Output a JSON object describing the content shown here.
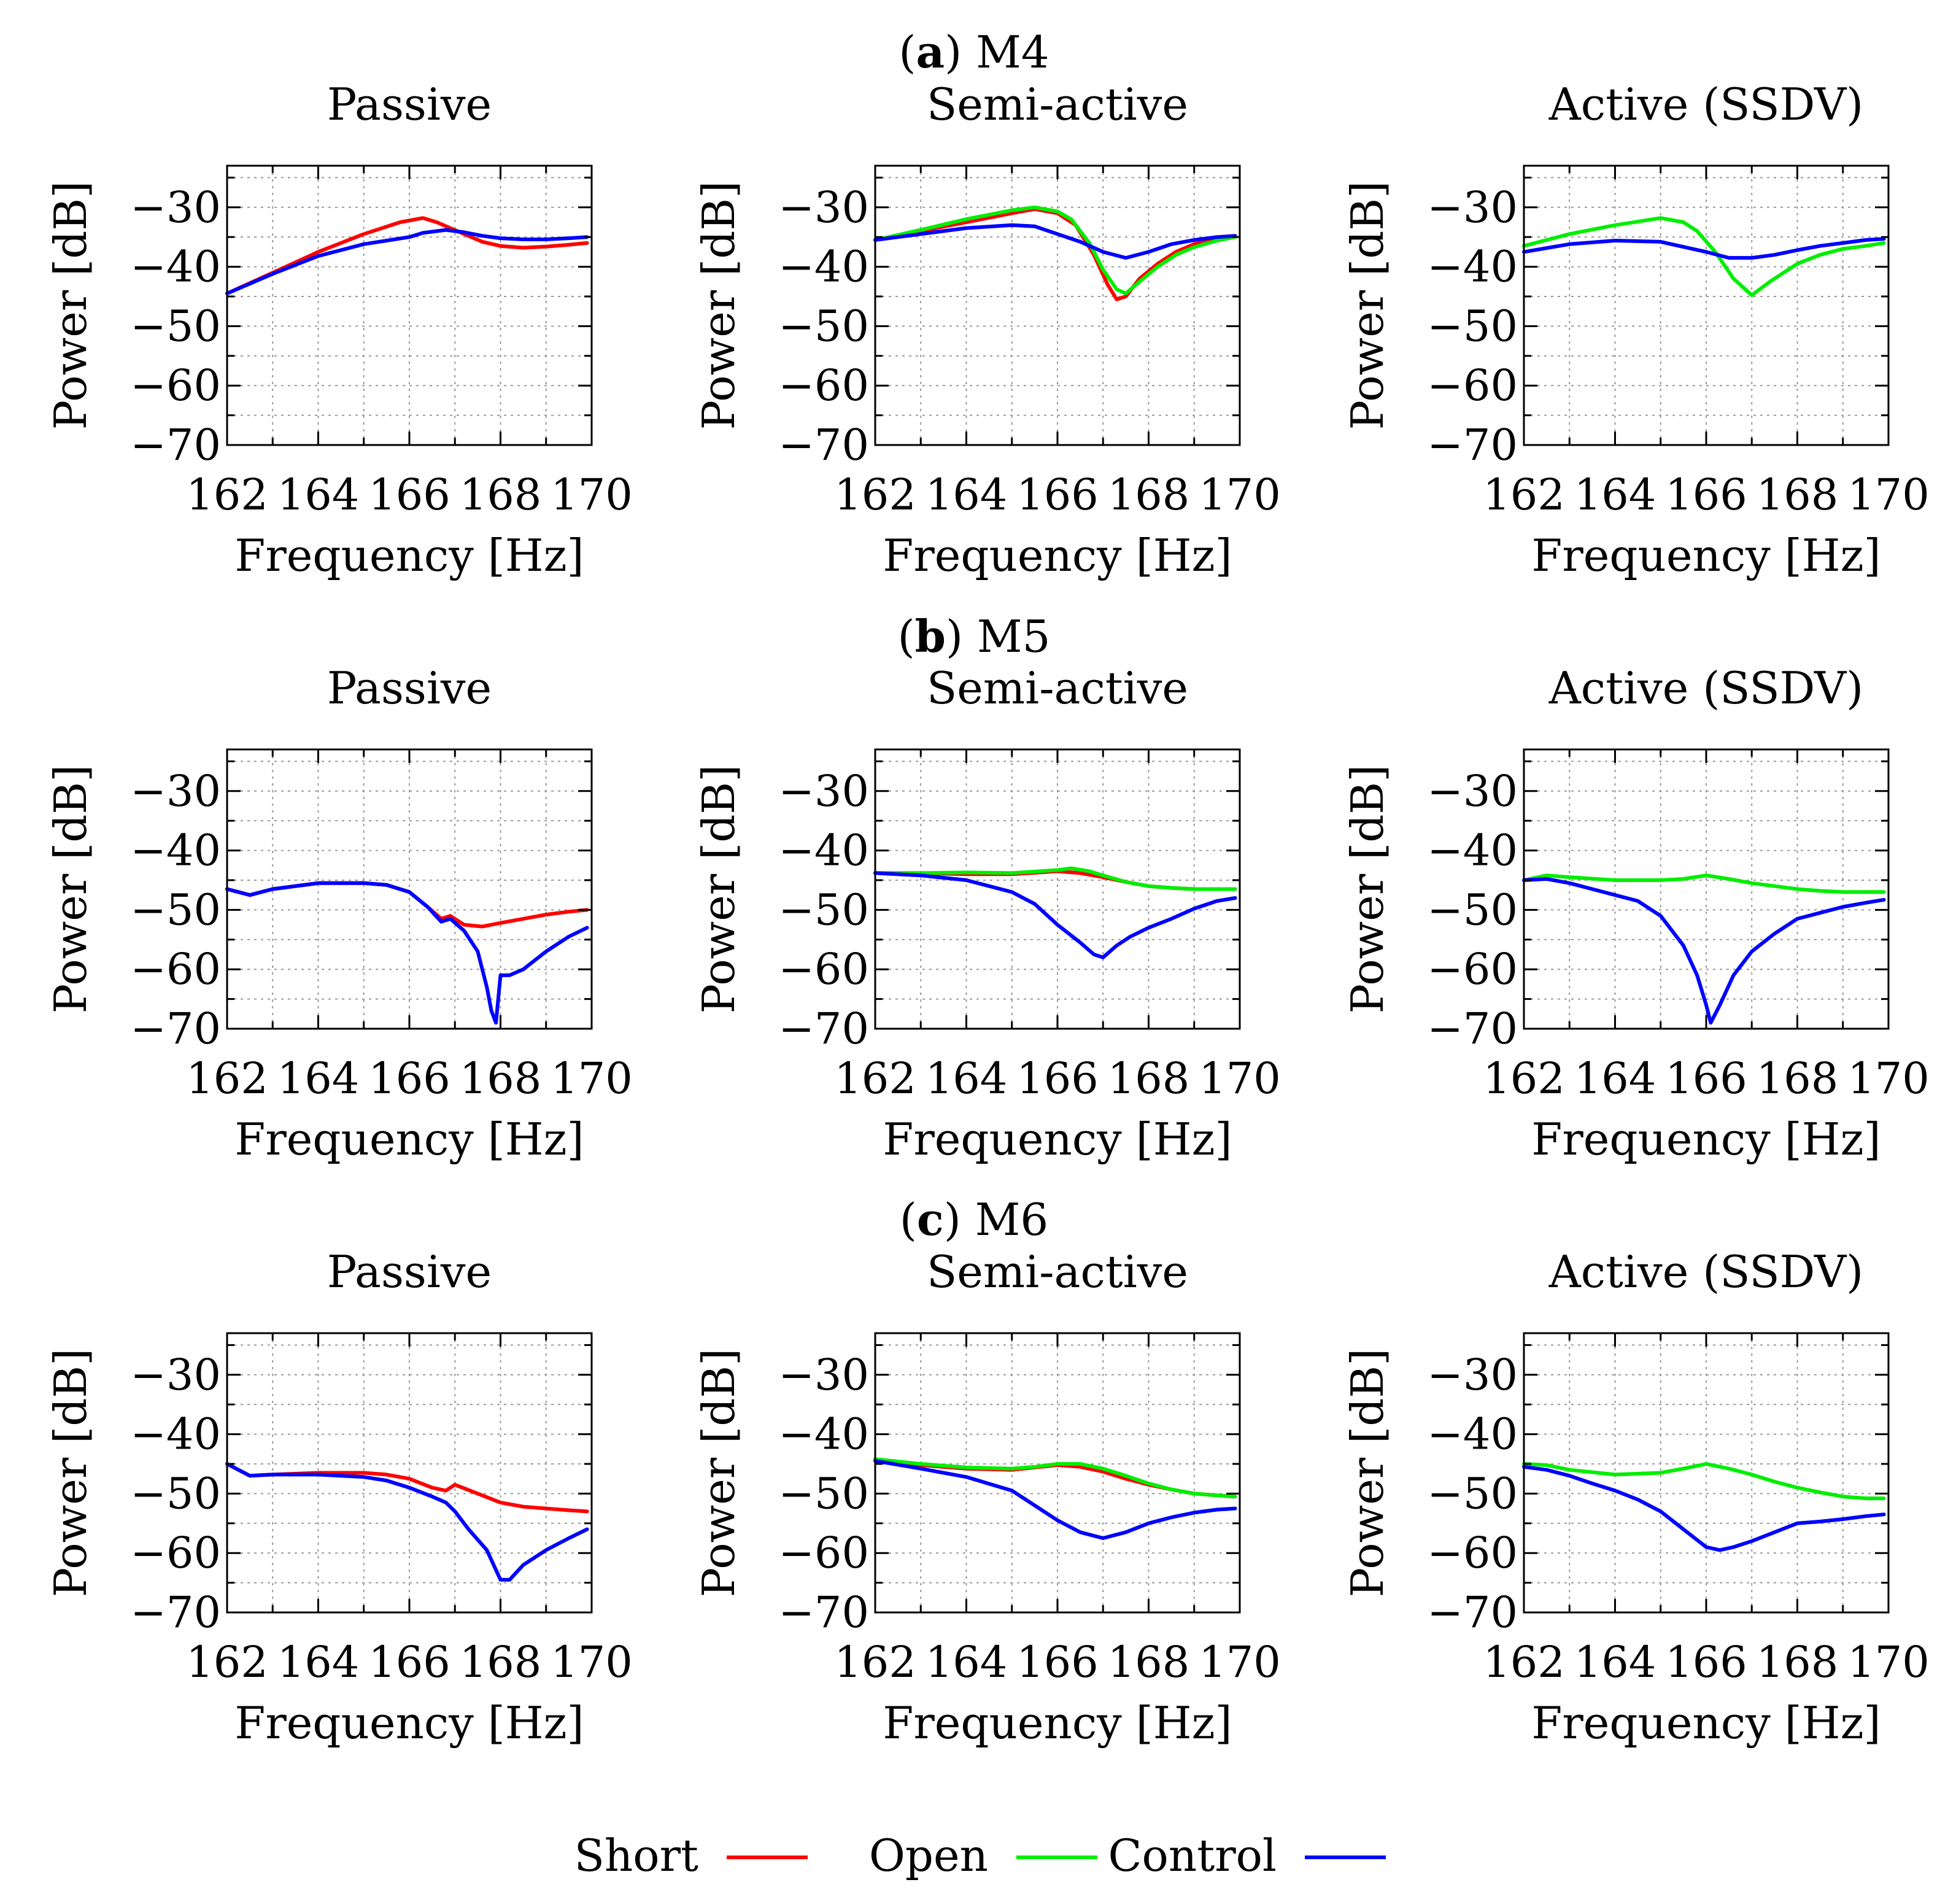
{
  "figure": {
    "rows": [
      {
        "label_letter": "a",
        "label_text": "M4"
      },
      {
        "label_letter": "b",
        "label_text": "M5"
      },
      {
        "label_letter": "c",
        "label_text": "M6"
      }
    ],
    "legend": [
      {
        "name": "Short",
        "color": "#ff0000"
      },
      {
        "name": "Open",
        "color": "#00ee00"
      },
      {
        "name": "Control",
        "color": "#0000ff"
      }
    ]
  },
  "chart_data": [
    {
      "type": "line",
      "title": "Passive",
      "xlabel": "Frequency [Hz]",
      "ylabel": "Power [dB]",
      "xlim": [
        162,
        170
      ],
      "ylim": [
        -70,
        -23
      ],
      "xticks": [
        "162",
        "164",
        "166",
        "168",
        "170"
      ],
      "yticks": [
        "−30",
        "−40",
        "−50",
        "−60",
        "−70"
      ],
      "series": [
        {
          "name": "Short",
          "color": "#ff0000",
          "x": [
            162,
            163,
            164,
            165,
            165.8,
            166.3,
            166.6,
            166.9,
            167.2,
            167.6,
            168,
            168.5,
            169,
            169.5,
            169.9
          ],
          "y": [
            -44.5,
            -41,
            -37.5,
            -34.5,
            -32.5,
            -31.8,
            -32.5,
            -33.5,
            -34.5,
            -35.8,
            -36.5,
            -36.8,
            -36.6,
            -36.3,
            -36.0
          ]
        },
        {
          "name": "Control",
          "color": "#0000ff",
          "x": [
            162,
            163,
            164,
            165,
            166,
            166.3,
            166.8,
            167.2,
            167.6,
            168,
            168.5,
            169,
            169.5,
            169.9
          ],
          "y": [
            -44.5,
            -41.2,
            -38.2,
            -36.2,
            -35.0,
            -34.3,
            -33.8,
            -34.2,
            -34.8,
            -35.2,
            -35.4,
            -35.4,
            -35.2,
            -35.0
          ]
        }
      ]
    },
    {
      "type": "line",
      "title": "Semi-active",
      "xlabel": "Frequency [Hz]",
      "ylabel": "Power [dB]",
      "xlim": [
        162,
        170
      ],
      "ylim": [
        -70,
        -23
      ],
      "xticks": [
        "162",
        "164",
        "166",
        "168",
        "170"
      ],
      "yticks": [
        "−30",
        "−40",
        "−50",
        "−60",
        "−70"
      ],
      "series": [
        {
          "name": "Short",
          "color": "#ff0000",
          "x": [
            162,
            163,
            164,
            165,
            165.5,
            166,
            166.4,
            166.8,
            167.1,
            167.3,
            167.5,
            167.8,
            168.2,
            168.6,
            169,
            169.5,
            169.9
          ],
          "y": [
            -35.5,
            -34,
            -32.5,
            -31,
            -30.3,
            -31,
            -33,
            -38,
            -43,
            -45.5,
            -45,
            -42,
            -39.5,
            -37.5,
            -36.2,
            -35.3,
            -35
          ]
        },
        {
          "name": "Open",
          "color": "#00ee00",
          "x": [
            162,
            163,
            164,
            165,
            165.5,
            166,
            166.3,
            166.7,
            167,
            167.3,
            167.5,
            167.8,
            168.2,
            168.6,
            169,
            169.5,
            169.9
          ],
          "y": [
            -35.5,
            -33.8,
            -32,
            -30.5,
            -30,
            -30.7,
            -32,
            -36,
            -40.5,
            -43.8,
            -44.5,
            -42.5,
            -40,
            -38,
            -36.7,
            -35.6,
            -35
          ]
        },
        {
          "name": "Control",
          "color": "#0000ff",
          "x": [
            162,
            163,
            164,
            165,
            165.5,
            166,
            166.5,
            167,
            167.5,
            168,
            168.5,
            169,
            169.5,
            169.9
          ],
          "y": [
            -35.5,
            -34.5,
            -33.5,
            -33,
            -33.2,
            -34.5,
            -35.8,
            -37.5,
            -38.5,
            -37.5,
            -36.2,
            -35.5,
            -35,
            -34.8
          ]
        }
      ]
    },
    {
      "type": "line",
      "title": "Active (SSDV)",
      "xlabel": "Frequency [Hz]",
      "ylabel": "Power [dB]",
      "xlim": [
        162,
        170
      ],
      "ylim": [
        -70,
        -23
      ],
      "xticks": [
        "162",
        "164",
        "166",
        "168",
        "170"
      ],
      "yticks": [
        "−30",
        "−40",
        "−50",
        "−60",
        "−70"
      ],
      "series": [
        {
          "name": "Open",
          "color": "#00ee00",
          "x": [
            162,
            163,
            164,
            165,
            165.5,
            165.8,
            166.2,
            166.6,
            167,
            167.4,
            168,
            168.5,
            169,
            169.5,
            169.9
          ],
          "y": [
            -36.5,
            -34.5,
            -33,
            -31.8,
            -32.5,
            -34,
            -37.5,
            -42,
            -44.8,
            -42.5,
            -39.5,
            -38,
            -37,
            -36.5,
            -36
          ]
        },
        {
          "name": "Control",
          "color": "#0000ff",
          "x": [
            162,
            163,
            164,
            165,
            166,
            166.5,
            167,
            167.5,
            168,
            168.5,
            169,
            169.5,
            169.9
          ],
          "y": [
            -37.5,
            -36.2,
            -35.6,
            -35.8,
            -37.5,
            -38.5,
            -38.5,
            -38,
            -37.2,
            -36.5,
            -36,
            -35.5,
            -35.3
          ]
        }
      ]
    },
    {
      "type": "line",
      "title": "Passive",
      "xlabel": "Frequency [Hz]",
      "ylabel": "Power [dB]",
      "xlim": [
        162,
        170
      ],
      "ylim": [
        -70,
        -23
      ],
      "xticks": [
        "162",
        "164",
        "166",
        "168",
        "170"
      ],
      "yticks": [
        "−30",
        "−40",
        "−50",
        "−60",
        "−70"
      ],
      "series": [
        {
          "name": "Short",
          "color": "#ff0000",
          "x": [
            162,
            162.5,
            163,
            164,
            165,
            165.5,
            166,
            166.4,
            166.7,
            166.9,
            167.2,
            167.6,
            168,
            168.5,
            169,
            169.5,
            169.9
          ],
          "y": [
            -46.5,
            -47.5,
            -46.5,
            -45.5,
            -45.5,
            -45.8,
            -47,
            -49.5,
            -51.5,
            -51,
            -52.5,
            -52.8,
            -52.2,
            -51.5,
            -50.8,
            -50.3,
            -50
          ]
        },
        {
          "name": "Control",
          "color": "#0000ff",
          "x": [
            162,
            162.5,
            163,
            164,
            165,
            165.5,
            166,
            166.4,
            166.7,
            166.9,
            167.2,
            167.5,
            167.7,
            167.8,
            167.9,
            168,
            168.2,
            168.5,
            169,
            169.5,
            169.9
          ],
          "y": [
            -46.5,
            -47.5,
            -46.5,
            -45.5,
            -45.5,
            -45.8,
            -47,
            -49.5,
            -52,
            -51.5,
            -53.5,
            -57,
            -63,
            -67,
            -69,
            -61,
            -61,
            -60,
            -57,
            -54.5,
            -53
          ]
        }
      ]
    },
    {
      "type": "line",
      "title": "Semi-active",
      "xlabel": "Frequency [Hz]",
      "ylabel": "Power [dB]",
      "xlim": [
        162,
        170
      ],
      "ylim": [
        -70,
        -23
      ],
      "xticks": [
        "162",
        "164",
        "166",
        "168",
        "170"
      ],
      "yticks": [
        "−30",
        "−40",
        "−50",
        "−60",
        "−70"
      ],
      "series": [
        {
          "name": "Short",
          "color": "#ff0000",
          "x": [
            162,
            163,
            164,
            165,
            166,
            166.5,
            167,
            167.5,
            168,
            168.5,
            169,
            169.5,
            169.9
          ],
          "y": [
            -43.8,
            -43.8,
            -44,
            -44,
            -43.5,
            -43.8,
            -44.5,
            -45.3,
            -46,
            -46.3,
            -46.5,
            -46.5,
            -46.5
          ]
        },
        {
          "name": "Open",
          "color": "#00ee00",
          "x": [
            162,
            163,
            164,
            165,
            166,
            166.3,
            166.7,
            167,
            167.5,
            168,
            168.5,
            169,
            169.5,
            169.9
          ],
          "y": [
            -43.8,
            -43.8,
            -43.7,
            -43.8,
            -43.3,
            -43,
            -43.5,
            -44.2,
            -45.3,
            -46,
            -46.3,
            -46.5,
            -46.5,
            -46.5
          ]
        },
        {
          "name": "Control",
          "color": "#0000ff",
          "x": [
            162,
            163,
            164,
            165,
            165.5,
            166,
            166.5,
            166.8,
            167,
            167.3,
            167.6,
            168,
            168.5,
            169,
            169.5,
            169.9
          ],
          "y": [
            -43.8,
            -44.2,
            -45,
            -47,
            -49,
            -52.5,
            -55.5,
            -57.5,
            -58,
            -56,
            -54.5,
            -53,
            -51.5,
            -49.8,
            -48.5,
            -48
          ]
        }
      ]
    },
    {
      "type": "line",
      "title": "Active (SSDV)",
      "xlabel": "Frequency [Hz]",
      "ylabel": "Power [dB]",
      "xlim": [
        162,
        170
      ],
      "ylim": [
        -70,
        -23
      ],
      "xticks": [
        "162",
        "164",
        "166",
        "168",
        "170"
      ],
      "yticks": [
        "−30",
        "−40",
        "−50",
        "−60",
        "−70"
      ],
      "series": [
        {
          "name": "Open",
          "color": "#00ee00",
          "x": [
            162,
            162.5,
            163,
            164,
            165,
            165.5,
            166,
            166.5,
            167,
            167.5,
            168,
            168.5,
            169,
            169.5,
            169.9
          ],
          "y": [
            -45,
            -44.2,
            -44.5,
            -45,
            -45,
            -44.8,
            -44.2,
            -44.8,
            -45.5,
            -46,
            -46.5,
            -46.8,
            -47,
            -47,
            -47
          ]
        },
        {
          "name": "Control",
          "color": "#0000ff",
          "x": [
            162,
            162.5,
            163,
            163.5,
            164,
            164.5,
            165,
            165.5,
            165.8,
            166,
            166.1,
            166.3,
            166.6,
            167,
            167.5,
            168,
            168.5,
            169,
            169.5,
            169.9
          ],
          "y": [
            -45,
            -44.8,
            -45.5,
            -46.5,
            -47.5,
            -48.5,
            -51,
            -56,
            -61,
            -66,
            -69,
            -66,
            -61,
            -57,
            -54,
            -51.5,
            -50.5,
            -49.5,
            -48.8,
            -48.3
          ]
        }
      ]
    },
    {
      "type": "line",
      "title": "Passive",
      "xlabel": "Frequency [Hz]",
      "ylabel": "Power [dB]",
      "xlim": [
        162,
        170
      ],
      "ylim": [
        -70,
        -23
      ],
      "xticks": [
        "162",
        "164",
        "166",
        "168",
        "170"
      ],
      "yticks": [
        "−30",
        "−40",
        "−50",
        "−60",
        "−70"
      ],
      "series": [
        {
          "name": "Short",
          "color": "#ff0000",
          "x": [
            162,
            162.5,
            163,
            164,
            165,
            165.5,
            166,
            166.5,
            166.8,
            167,
            167.5,
            168,
            168.5,
            169,
            169.5,
            169.9
          ],
          "y": [
            -45,
            -47,
            -46.8,
            -46.5,
            -46.5,
            -46.8,
            -47.5,
            -49,
            -49.5,
            -48.5,
            -50,
            -51.5,
            -52.2,
            -52.5,
            -52.8,
            -53
          ]
        },
        {
          "name": "Control",
          "color": "#0000ff",
          "x": [
            162,
            162.5,
            163,
            164,
            165,
            165.5,
            166,
            166.5,
            166.8,
            167,
            167.3,
            167.7,
            168,
            168.2,
            168.5,
            169,
            169.5,
            169.9
          ],
          "y": [
            -45,
            -47,
            -46.8,
            -46.8,
            -47.2,
            -47.8,
            -49,
            -50.5,
            -51.5,
            -53,
            -56,
            -59.5,
            -64.5,
            -64.5,
            -62,
            -59.5,
            -57.5,
            -56
          ]
        }
      ]
    },
    {
      "type": "line",
      "title": "Semi-active",
      "xlabel": "Frequency [Hz]",
      "ylabel": "Power [dB]",
      "xlim": [
        162,
        170
      ],
      "ylim": [
        -70,
        -23
      ],
      "xticks": [
        "162",
        "164",
        "166",
        "168",
        "170"
      ],
      "yticks": [
        "−30",
        "−40",
        "−50",
        "−60",
        "−70"
      ],
      "series": [
        {
          "name": "Short",
          "color": "#ff0000",
          "x": [
            162,
            163,
            164,
            165,
            166,
            166.5,
            167,
            167.5,
            168,
            168.5,
            169,
            169.5,
            169.9
          ],
          "y": [
            -44.5,
            -45.2,
            -45.8,
            -46,
            -45.2,
            -45.5,
            -46.3,
            -47.5,
            -48.5,
            -49.3,
            -50,
            -50.3,
            -50.5
          ]
        },
        {
          "name": "Open",
          "color": "#00ee00",
          "x": [
            162,
            163,
            164,
            165,
            165.5,
            166,
            166.5,
            167,
            167.5,
            168,
            168.5,
            169,
            169.5,
            169.9
          ],
          "y": [
            -44.2,
            -45,
            -45.6,
            -45.8,
            -45.5,
            -45,
            -45,
            -45.8,
            -47,
            -48.3,
            -49.3,
            -50,
            -50.3,
            -50.5
          ]
        },
        {
          "name": "Control",
          "color": "#0000ff",
          "x": [
            162,
            163,
            164,
            165,
            165.5,
            166,
            166.5,
            167,
            167.5,
            168,
            168.5,
            169,
            169.5,
            169.9
          ],
          "y": [
            -44.5,
            -45.8,
            -47.2,
            -49.5,
            -52,
            -54.5,
            -56.5,
            -57.5,
            -56.5,
            -55,
            -54,
            -53.2,
            -52.7,
            -52.5
          ]
        }
      ]
    },
    {
      "type": "line",
      "title": "Active (SSDV)",
      "xlabel": "Frequency [Hz]",
      "ylabel": "Power [dB]",
      "xlim": [
        162,
        170
      ],
      "ylim": [
        -70,
        -23
      ],
      "xticks": [
        "162",
        "164",
        "166",
        "168",
        "170"
      ],
      "yticks": [
        "−30",
        "−40",
        "−50",
        "−60",
        "−70"
      ],
      "series": [
        {
          "name": "Open",
          "color": "#00ee00",
          "x": [
            162,
            162.5,
            163,
            164,
            165,
            165.5,
            166,
            166.5,
            167,
            167.5,
            168,
            168.5,
            169,
            169.5,
            169.9
          ],
          "y": [
            -45,
            -45.2,
            -46,
            -46.8,
            -46.5,
            -45.8,
            -45,
            -45.8,
            -46.8,
            -48,
            -49,
            -49.8,
            -50.5,
            -50.8,
            -50.8
          ]
        },
        {
          "name": "Control",
          "color": "#0000ff",
          "x": [
            162,
            162.5,
            163,
            163.5,
            164,
            164.5,
            165,
            165.5,
            166,
            166.3,
            166.6,
            167,
            167.5,
            168,
            168.5,
            169,
            169.5,
            169.9
          ],
          "y": [
            -45.5,
            -46,
            -47,
            -48.3,
            -49.5,
            -51,
            -53,
            -56,
            -59,
            -59.5,
            -59,
            -58,
            -56.5,
            -55,
            -54.7,
            -54.3,
            -53.8,
            -53.5
          ]
        }
      ]
    }
  ]
}
